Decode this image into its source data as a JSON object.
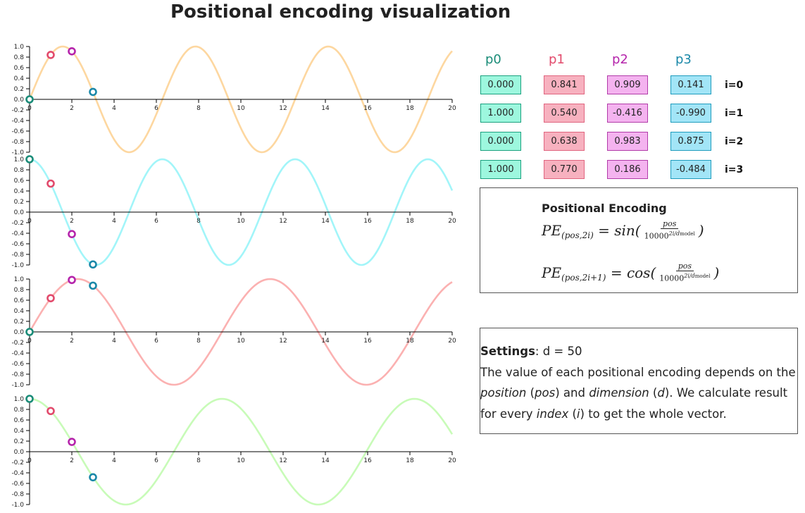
{
  "title": "Positional encoding visualization",
  "colors": {
    "series_strokes": [
      "#fdd7a0",
      "#a2f5f9",
      "#fbb1b1",
      "#c8fbb8"
    ],
    "p0": "#1a8c78",
    "p1": "#e24a6c",
    "p2": "#b524ab",
    "p3": "#1a88a8",
    "p0_fill": "#9df7de",
    "p1_fill": "#f7b1bf",
    "p2_fill": "#f4b3ef",
    "p3_fill": "#a2e5f7",
    "p0_border": "#1ba17f",
    "p1_border": "#e0657f",
    "p2_border": "#b13ba8",
    "p3_border": "#1f9cbd"
  },
  "chart_data": [
    {
      "type": "line",
      "function": "sin(x)",
      "xlim": [
        0,
        20
      ],
      "ylim": [
        -1,
        1
      ],
      "x_ticks": [
        "0",
        "2",
        "4",
        "6",
        "8",
        "10",
        "12",
        "14",
        "16",
        "18",
        "20"
      ],
      "y_ticks": [
        "1.0",
        "0.8",
        "0.6",
        "0.4",
        "0.2",
        "0.0",
        "-0.2",
        "-0.4",
        "-0.6",
        "-0.8",
        "-1.0"
      ],
      "points": [
        {
          "x": 0,
          "y": 0.0
        },
        {
          "x": 1,
          "y": 0.841
        },
        {
          "x": 2,
          "y": 0.909
        },
        {
          "x": 3,
          "y": 0.141
        }
      ]
    },
    {
      "type": "line",
      "function": "cos(x)",
      "xlim": [
        0,
        20
      ],
      "ylim": [
        -1,
        1
      ],
      "x_ticks": [
        "0",
        "2",
        "4",
        "6",
        "8",
        "10",
        "12",
        "14",
        "16",
        "18",
        "20"
      ],
      "y_ticks": [
        "1.0",
        "0.8",
        "0.6",
        "0.4",
        "0.2",
        "0.0",
        "-0.2",
        "-0.4",
        "-0.6",
        "-0.8",
        "-1.0"
      ],
      "points": [
        {
          "x": 0,
          "y": 1.0
        },
        {
          "x": 1,
          "y": 0.54
        },
        {
          "x": 2,
          "y": -0.416
        },
        {
          "x": 3,
          "y": -0.99
        }
      ]
    },
    {
      "type": "line",
      "function": "sin(0.69x)",
      "xlim": [
        0,
        20
      ],
      "ylim": [
        -1,
        1
      ],
      "x_ticks": [
        "0",
        "2",
        "4",
        "6",
        "8",
        "10",
        "12",
        "14",
        "16",
        "18",
        "20"
      ],
      "y_ticks": [
        "1.0",
        "0.8",
        "0.6",
        "0.4",
        "0.2",
        "0.0",
        "-0.2",
        "-0.4",
        "-0.6",
        "-0.8",
        "-1.0"
      ],
      "points": [
        {
          "x": 0,
          "y": 0.0
        },
        {
          "x": 1,
          "y": 0.638
        },
        {
          "x": 2,
          "y": 0.983
        },
        {
          "x": 3,
          "y": 0.875
        }
      ]
    },
    {
      "type": "line",
      "function": "cos(0.69x)",
      "xlim": [
        0,
        20
      ],
      "ylim": [
        -1,
        1
      ],
      "x_ticks": [
        "0",
        "2",
        "4",
        "6",
        "8",
        "10",
        "12",
        "14",
        "16",
        "18",
        "20"
      ],
      "y_ticks": [
        "1.0",
        "0.8",
        "0.6",
        "0.4",
        "0.2",
        "0.0",
        "-0.2",
        "-0.4",
        "-0.6",
        "-0.8",
        "-1.0"
      ],
      "points": [
        {
          "x": 0,
          "y": 1.0
        },
        {
          "x": 1,
          "y": 0.77
        },
        {
          "x": 2,
          "y": 0.186
        },
        {
          "x": 3,
          "y": -0.484
        }
      ]
    }
  ],
  "table": {
    "columns": [
      "p0",
      "p1",
      "p2",
      "p3"
    ],
    "rows": [
      {
        "label": "i=0",
        "values": [
          "0.000",
          "0.841",
          "0.909",
          "0.141"
        ]
      },
      {
        "label": "i=1",
        "values": [
          "1.000",
          "0.540",
          "-0.416",
          "-0.990"
        ]
      },
      {
        "label": "i=2",
        "values": [
          "0.000",
          "0.638",
          "0.983",
          "0.875"
        ]
      },
      {
        "label": "i=3",
        "values": [
          "1.000",
          "0.770",
          "0.186",
          "-0.484"
        ]
      }
    ]
  },
  "formula": {
    "title": "Positional Encoding",
    "lhs1": "PE",
    "sub1": "(pos,2i)",
    "eq1": " = sin(",
    "lhs2": "PE",
    "sub2": "(pos,2i+1)",
    "eq2": " = cos(",
    "num": "pos",
    "den_base": "10000",
    "den_exp": "2i/d",
    "den_sub": "model",
    "close": ")"
  },
  "settings": {
    "label": "Settings",
    "value": ": d = 50",
    "t1": "The value of each positional encoding depends on the ",
    "t2": "position",
    "t3": " (",
    "t4": "pos",
    "t5": ") and ",
    "t6": "dimension",
    "t7": " (",
    "t8": "d",
    "t9": "). We calculate result for every ",
    "t10": "index",
    "t11": " (",
    "t12": "i",
    "t13": ") to get the whole vector."
  }
}
